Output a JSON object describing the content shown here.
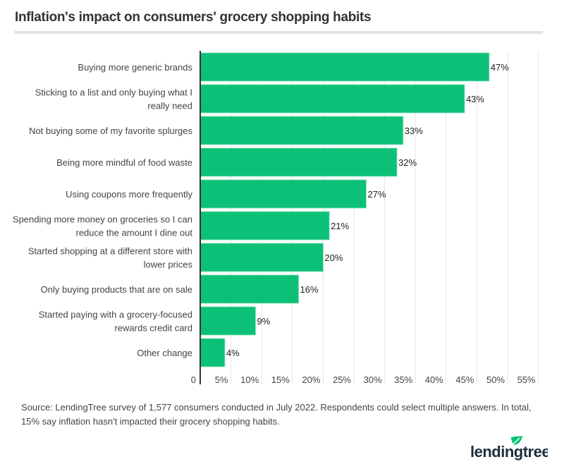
{
  "chart_data": {
    "type": "bar",
    "orientation": "horizontal",
    "title": "Inflation's impact on consumers' grocery shopping habits",
    "categories": [
      [
        "Buying more generic brands"
      ],
      [
        "Sticking to a list and only buying what I",
        "really need"
      ],
      [
        "Not buying some of my favorite splurges"
      ],
      [
        "Being more mindful of food waste"
      ],
      [
        "Using coupons more frequently"
      ],
      [
        "Spending more money on groceries so I can",
        "reduce the amount I dine out"
      ],
      [
        "Started shopping at a different store with",
        "lower prices"
      ],
      [
        "Only buying products that are on sale"
      ],
      [
        "Started paying with a grocery-focused",
        "rewards credit card"
      ],
      [
        "Other change"
      ]
    ],
    "values": [
      47,
      43,
      33,
      32,
      27,
      21,
      20,
      16,
      9,
      4
    ],
    "data_labels": [
      "47%",
      "43%",
      "33%",
      "32%",
      "27%",
      "21%",
      "20%",
      "16%",
      "9%",
      "4%"
    ],
    "xlim": [
      0,
      55
    ],
    "x_ticks": [
      "0",
      "5%",
      "10%",
      "15%",
      "20%",
      "25%",
      "30%",
      "35%",
      "40%",
      "45%",
      "50%",
      "55%"
    ],
    "grid": true,
    "bar_color": "#0cc177"
  },
  "source": "Source: LendingTree survey of 1,577 consumers conducted in July 2022. Respondents could select multiple answers. In total, 15% say inflation hasn't impacted their grocery shopping habits.",
  "logo": "lendingtree"
}
